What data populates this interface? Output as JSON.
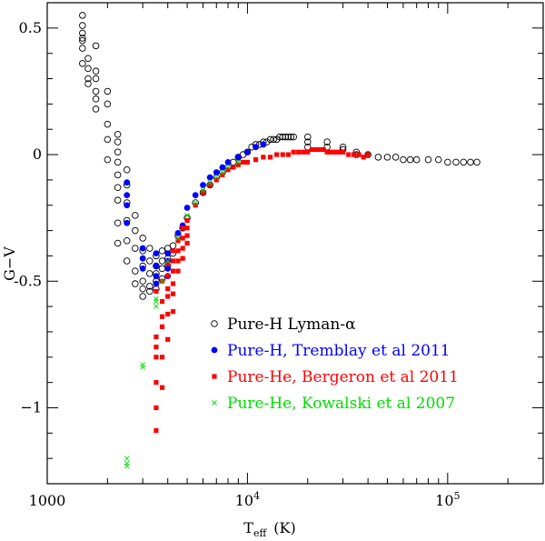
{
  "chart_data": {
    "type": "scatter",
    "title": "",
    "xlabel": "T",
    "xlabel_sub": "eff",
    "xlabel_unit": "(K)",
    "ylabel": "G−V",
    "x_scale": "log",
    "xlim": [
      1000,
      300000
    ],
    "ylim": [
      -1.3,
      0.6
    ],
    "x_ticks": [
      {
        "value": 1000,
        "label": "1000"
      },
      {
        "value": 10000,
        "label": "10",
        "sup": "4"
      },
      {
        "value": 100000,
        "label": "10",
        "sup": "5"
      }
    ],
    "y_ticks": [
      {
        "value": 0.5,
        "label": "0.5"
      },
      {
        "value": 0,
        "label": "0"
      },
      {
        "value": -0.5,
        "label": "-0.5"
      },
      {
        "value": -1,
        "label": "−1"
      }
    ],
    "legend_position": "lower-right",
    "series": [
      {
        "name": "Pure-H Lyman-α",
        "marker": "open-circle",
        "color": "#000000",
        "points": [
          [
            1500,
            0.55
          ],
          [
            1500,
            0.51
          ],
          [
            1500,
            0.48
          ],
          [
            1500,
            0.46
          ],
          [
            1500,
            0.45
          ],
          [
            1500,
            0.42
          ],
          [
            1500,
            0.36
          ],
          [
            1600,
            0.38
          ],
          [
            1600,
            0.34
          ],
          [
            1600,
            0.3
          ],
          [
            1600,
            0.28
          ],
          [
            1750,
            0.43
          ],
          [
            1750,
            0.33
          ],
          [
            1750,
            0.3
          ],
          [
            1750,
            0.25
          ],
          [
            1750,
            0.22
          ],
          [
            1750,
            0.18
          ],
          [
            2000,
            0.25
          ],
          [
            2000,
            0.2
          ],
          [
            2000,
            0.12
          ],
          [
            2000,
            0.06
          ],
          [
            2000,
            -0.02
          ],
          [
            2250,
            0.08
          ],
          [
            2250,
            0.05
          ],
          [
            2250,
            0.01
          ],
          [
            2250,
            -0.03
          ],
          [
            2250,
            -0.08
          ],
          [
            2250,
            -0.13
          ],
          [
            2250,
            -0.18
          ],
          [
            2250,
            -0.27
          ],
          [
            2250,
            -0.35
          ],
          [
            2500,
            -0.06
          ],
          [
            2500,
            -0.12
          ],
          [
            2500,
            -0.19
          ],
          [
            2500,
            -0.26
          ],
          [
            2500,
            -0.34
          ],
          [
            2500,
            -0.42
          ],
          [
            2750,
            -0.24
          ],
          [
            2750,
            -0.3
          ],
          [
            2750,
            -0.37
          ],
          [
            2750,
            -0.46
          ],
          [
            2750,
            -0.51
          ],
          [
            3000,
            -0.33
          ],
          [
            3000,
            -0.38
          ],
          [
            3000,
            -0.44
          ],
          [
            3000,
            -0.5
          ],
          [
            3000,
            -0.53
          ],
          [
            3000,
            -0.56
          ],
          [
            3250,
            -0.37
          ],
          [
            3250,
            -0.42
          ],
          [
            3250,
            -0.47
          ],
          [
            3250,
            -0.52
          ],
          [
            3250,
            -0.54
          ],
          [
            3500,
            -0.4
          ],
          [
            3500,
            -0.44
          ],
          [
            3500,
            -0.47
          ],
          [
            3500,
            -0.5
          ],
          [
            3500,
            -0.53
          ],
          [
            3750,
            -0.38
          ],
          [
            3750,
            -0.42
          ],
          [
            3750,
            -0.45
          ],
          [
            3750,
            -0.49
          ],
          [
            4000,
            -0.37
          ],
          [
            4000,
            -0.41
          ],
          [
            4000,
            -0.44
          ],
          [
            4250,
            -0.36
          ],
          [
            4250,
            -0.39
          ],
          [
            4500,
            -0.32
          ],
          [
            4750,
            -0.29
          ],
          [
            5000,
            -0.25
          ],
          [
            5500,
            -0.19
          ],
          [
            6000,
            -0.15
          ],
          [
            6500,
            -0.12
          ],
          [
            7000,
            -0.09
          ],
          [
            7500,
            -0.07
          ],
          [
            8000,
            -0.05
          ],
          [
            8500,
            -0.03
          ],
          [
            9000,
            -0.01
          ],
          [
            9500,
            0.0
          ],
          [
            10000,
            0.01
          ],
          [
            10500,
            0.03
          ],
          [
            11000,
            0.04
          ],
          [
            11500,
            0.04
          ],
          [
            12000,
            0.05
          ],
          [
            12500,
            0.05
          ],
          [
            13000,
            0.06
          ],
          [
            13500,
            0.06
          ],
          [
            14000,
            0.06
          ],
          [
            14500,
            0.07
          ],
          [
            15000,
            0.07
          ],
          [
            15500,
            0.07
          ],
          [
            16000,
            0.07
          ],
          [
            16500,
            0.07
          ],
          [
            17000,
            0.07
          ],
          [
            20000,
            0.07
          ],
          [
            20000,
            0.05
          ],
          [
            20000,
            0.03
          ],
          [
            25000,
            0.05
          ],
          [
            25000,
            0.03
          ],
          [
            30000,
            0.03
          ],
          [
            30000,
            0.02
          ],
          [
            35000,
            0.01
          ],
          [
            35000,
            0.0
          ],
          [
            40000,
            0.0
          ],
          [
            45000,
            -0.01
          ],
          [
            50000,
            -0.01
          ],
          [
            55000,
            -0.01
          ],
          [
            60000,
            -0.02
          ],
          [
            65000,
            -0.02
          ],
          [
            70000,
            -0.02
          ],
          [
            80000,
            -0.02
          ],
          [
            90000,
            -0.02
          ],
          [
            100000,
            -0.03
          ],
          [
            110000,
            -0.03
          ],
          [
            120000,
            -0.03
          ],
          [
            130000,
            -0.03
          ],
          [
            140000,
            -0.03
          ]
        ]
      },
      {
        "name": "Pure-H, Tremblay et al 2011",
        "marker": "filled-circle",
        "color": "#0000ff",
        "points": [
          [
            2500,
            -0.11
          ],
          [
            2500,
            -0.16
          ],
          [
            2500,
            -0.2
          ],
          [
            2500,
            -0.27
          ],
          [
            3000,
            -0.37
          ],
          [
            3000,
            -0.41
          ],
          [
            3000,
            -0.45
          ],
          [
            3500,
            -0.39
          ],
          [
            3500,
            -0.44
          ],
          [
            3500,
            -0.48
          ],
          [
            3500,
            -0.51
          ],
          [
            4000,
            -0.39
          ],
          [
            4000,
            -0.42
          ],
          [
            4000,
            -0.45
          ],
          [
            4000,
            -0.48
          ],
          [
            4500,
            -0.31
          ],
          [
            4750,
            -0.28
          ],
          [
            5000,
            -0.21
          ],
          [
            5500,
            -0.16
          ],
          [
            6000,
            -0.12
          ],
          [
            6500,
            -0.09
          ],
          [
            7000,
            -0.07
          ],
          [
            7500,
            -0.05
          ],
          [
            8000,
            -0.03
          ],
          [
            9000,
            -0.01
          ],
          [
            10000,
            0.01
          ],
          [
            11000,
            0.03
          ],
          [
            12000,
            0.04
          ]
        ]
      },
      {
        "name": "Pure-He, Bergeron et al 2011",
        "marker": "filled-square",
        "color": "#ff0000",
        "points": [
          [
            3500,
            -0.54
          ],
          [
            3500,
            -0.72
          ],
          [
            3500,
            -0.76
          ],
          [
            3500,
            -0.8
          ],
          [
            3500,
            -0.9
          ],
          [
            3500,
            -1.0
          ],
          [
            3500,
            -1.09
          ],
          [
            3750,
            -0.5
          ],
          [
            3750,
            -0.58
          ],
          [
            3750,
            -0.64
          ],
          [
            3750,
            -0.68
          ],
          [
            3750,
            -0.8
          ],
          [
            3750,
            -0.92
          ],
          [
            4000,
            -0.43
          ],
          [
            4000,
            -0.48
          ],
          [
            4000,
            -0.53
          ],
          [
            4000,
            -0.56
          ],
          [
            4000,
            -0.63
          ],
          [
            4000,
            -0.73
          ],
          [
            4250,
            -0.38
          ],
          [
            4250,
            -0.42
          ],
          [
            4250,
            -0.46
          ],
          [
            4250,
            -0.51
          ],
          [
            4250,
            -0.55
          ],
          [
            4250,
            -0.62
          ],
          [
            4500,
            -0.34
          ],
          [
            4500,
            -0.38
          ],
          [
            4500,
            -0.42
          ],
          [
            4500,
            -0.46
          ],
          [
            4750,
            -0.29
          ],
          [
            4750,
            -0.33
          ],
          [
            4750,
            -0.37
          ],
          [
            4750,
            -0.41
          ],
          [
            5000,
            -0.26
          ],
          [
            5000,
            -0.29
          ],
          [
            5000,
            -0.32
          ],
          [
            5000,
            -0.35
          ],
          [
            5500,
            -0.2
          ],
          [
            6000,
            -0.15
          ],
          [
            6500,
            -0.12
          ],
          [
            7000,
            -0.1
          ],
          [
            7500,
            -0.08
          ],
          [
            8000,
            -0.06
          ],
          [
            8500,
            -0.05
          ],
          [
            9000,
            -0.04
          ],
          [
            9500,
            -0.03
          ],
          [
            10000,
            -0.03
          ],
          [
            11000,
            -0.02
          ],
          [
            12000,
            -0.01
          ],
          [
            13000,
            -0.01
          ],
          [
            14000,
            0.0
          ],
          [
            15000,
            0.0
          ],
          [
            16000,
            0.0
          ],
          [
            17000,
            0.01
          ],
          [
            18000,
            0.01
          ],
          [
            19000,
            0.01
          ],
          [
            20000,
            0.01
          ],
          [
            21000,
            0.02
          ],
          [
            22000,
            0.02
          ],
          [
            23000,
            0.02
          ],
          [
            24000,
            0.02
          ],
          [
            25000,
            0.01
          ],
          [
            26000,
            0.01
          ],
          [
            27000,
            0.01
          ],
          [
            28000,
            0.01
          ],
          [
            29000,
            0.01
          ],
          [
            30000,
            0.01
          ],
          [
            32000,
            0.0
          ],
          [
            34000,
            0.0
          ],
          [
            36000,
            0.0
          ],
          [
            38000,
            -0.01
          ],
          [
            40000,
            0.0
          ]
        ]
      },
      {
        "name": "Pure-He, Kowalski et al 2007",
        "marker": "x",
        "color": "#00dd00",
        "points": [
          [
            2500,
            -1.2
          ],
          [
            2500,
            -1.22
          ],
          [
            2500,
            -1.23
          ],
          [
            3000,
            -0.83
          ],
          [
            3000,
            -0.84
          ],
          [
            3500,
            -0.57
          ],
          [
            3500,
            -0.58
          ],
          [
            3500,
            -0.6
          ],
          [
            3750,
            -0.5
          ],
          [
            4000,
            -0.42
          ],
          [
            4500,
            -0.33
          ],
          [
            5000,
            -0.24
          ],
          [
            5500,
            -0.19
          ],
          [
            6000,
            -0.14
          ],
          [
            6500,
            -0.11
          ],
          [
            7000,
            -0.09
          ],
          [
            7500,
            -0.07
          ],
          [
            8000,
            -0.05
          ],
          [
            9000,
            -0.03
          ]
        ]
      }
    ]
  }
}
